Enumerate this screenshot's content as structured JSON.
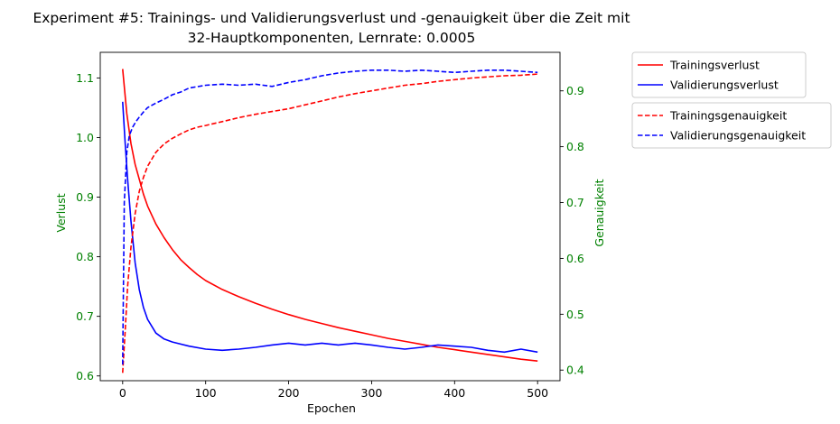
{
  "chart_data": {
    "type": "line",
    "title_line1": "Experiment #5: Trainings- und Validierungsverlust und -genauigkeit über die Zeit mit",
    "title_line2": "32-Hauptkomponenten, Lernrate: 0.0005",
    "xlabel": "Epochen",
    "ylabel_left": "Verlust",
    "ylabel_right": "Genauigkeit",
    "xlim": [
      -27,
      527
    ],
    "ylim_left": [
      0.592,
      1.143
    ],
    "ylim_right": [
      0.381,
      0.969
    ],
    "xticks": [
      0,
      100,
      200,
      300,
      400,
      500
    ],
    "yticks_left": [
      0.6,
      0.7,
      0.8,
      0.9,
      1.0,
      1.1
    ],
    "yticks_right": [
      0.4,
      0.5,
      0.6,
      0.7,
      0.8,
      0.9
    ],
    "grid": false,
    "legend_placement": "outside top-right",
    "colors": {
      "train": "#ff0000",
      "val": "#0000ff",
      "tick_label": "#008000"
    },
    "series": [
      {
        "name": "Trainingsverlust",
        "axis": "left",
        "style": "solid",
        "color": "#ff0000",
        "x": [
          0,
          5,
          10,
          15,
          20,
          25,
          30,
          40,
          50,
          60,
          70,
          80,
          90,
          100,
          120,
          140,
          160,
          180,
          200,
          220,
          240,
          260,
          280,
          300,
          320,
          340,
          360,
          380,
          400,
          420,
          440,
          460,
          480,
          500
        ],
        "y": [
          1.115,
          1.04,
          0.99,
          0.955,
          0.93,
          0.905,
          0.885,
          0.855,
          0.832,
          0.812,
          0.795,
          0.782,
          0.77,
          0.76,
          0.745,
          0.733,
          0.722,
          0.712,
          0.703,
          0.695,
          0.688,
          0.681,
          0.675,
          0.669,
          0.663,
          0.658,
          0.653,
          0.648,
          0.644,
          0.64,
          0.636,
          0.632,
          0.628,
          0.625
        ]
      },
      {
        "name": "Validierungsverlust",
        "axis": "left",
        "style": "solid",
        "color": "#0000ff",
        "x": [
          0,
          3,
          6,
          10,
          15,
          20,
          25,
          30,
          40,
          50,
          60,
          80,
          100,
          120,
          140,
          160,
          180,
          200,
          220,
          240,
          260,
          280,
          300,
          320,
          340,
          360,
          380,
          400,
          420,
          440,
          460,
          480,
          500
        ],
        "y": [
          1.06,
          0.99,
          0.93,
          0.86,
          0.79,
          0.745,
          0.715,
          0.695,
          0.672,
          0.662,
          0.657,
          0.65,
          0.645,
          0.643,
          0.645,
          0.648,
          0.652,
          0.655,
          0.652,
          0.655,
          0.652,
          0.655,
          0.652,
          0.648,
          0.645,
          0.648,
          0.652,
          0.65,
          0.648,
          0.643,
          0.64,
          0.645,
          0.64
        ]
      },
      {
        "name": "Trainingsgenauigkeit",
        "axis": "right",
        "style": "dashed",
        "color": "#ff0000",
        "x": [
          0,
          3,
          6,
          10,
          15,
          20,
          25,
          30,
          40,
          50,
          60,
          70,
          80,
          90,
          100,
          120,
          140,
          160,
          180,
          200,
          220,
          240,
          260,
          280,
          300,
          320,
          340,
          360,
          380,
          400,
          420,
          440,
          460,
          480,
          500
        ],
        "y": [
          0.395,
          0.47,
          0.55,
          0.62,
          0.68,
          0.72,
          0.745,
          0.765,
          0.79,
          0.805,
          0.815,
          0.823,
          0.83,
          0.835,
          0.838,
          0.845,
          0.852,
          0.858,
          0.863,
          0.868,
          0.875,
          0.882,
          0.889,
          0.895,
          0.9,
          0.905,
          0.91,
          0.913,
          0.917,
          0.92,
          0.923,
          0.925,
          0.927,
          0.928,
          0.93
        ]
      },
      {
        "name": "Validierungsgenauigkeit",
        "axis": "right",
        "style": "dashed",
        "color": "#0000ff",
        "x": [
          0,
          2,
          5,
          8,
          12,
          16,
          20,
          25,
          30,
          40,
          50,
          60,
          70,
          80,
          100,
          120,
          140,
          160,
          180,
          200,
          220,
          240,
          260,
          280,
          300,
          320,
          340,
          360,
          380,
          400,
          420,
          440,
          460,
          480,
          500
        ],
        "y": [
          0.41,
          0.7,
          0.79,
          0.82,
          0.835,
          0.845,
          0.853,
          0.862,
          0.87,
          0.878,
          0.885,
          0.893,
          0.898,
          0.905,
          0.91,
          0.912,
          0.91,
          0.912,
          0.908,
          0.915,
          0.92,
          0.927,
          0.932,
          0.935,
          0.937,
          0.937,
          0.935,
          0.937,
          0.935,
          0.933,
          0.935,
          0.937,
          0.937,
          0.935,
          0.933
        ]
      }
    ]
  }
}
